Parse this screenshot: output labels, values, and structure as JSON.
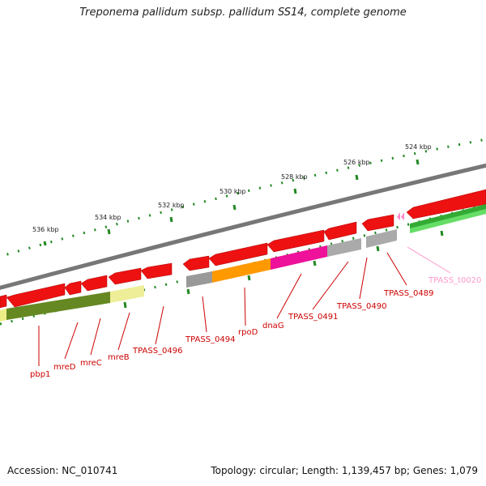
{
  "title": "Treponema pallidum subsp. pallidum SS14, complete genome",
  "footer": {
    "accession": "Accession: NC_010741",
    "summary": "Topology: circular; Length: 1,139,457 bp; Genes: 1,079"
  },
  "colors": {
    "backbone": "#777777",
    "gene_red": "#ee1111",
    "ruler": "#228822",
    "label_red": "#cc0000",
    "trna_pink": "#ff88cc"
  },
  "scale_labels": [
    "536 kbp",
    "534 kbp",
    "532 kbp",
    "530 kbp",
    "528 kbp",
    "526 kbp",
    "524 kbp"
  ],
  "gene_labels": [
    "pbp1",
    "mreD",
    "mreC",
    "mreB",
    "TPASS_0496",
    "TPASS_0494",
    "rpoD",
    "dnaG",
    "TPASS_0491",
    "TPASS_0490",
    "TPASS_0489",
    "TPASS_t0020"
  ]
}
